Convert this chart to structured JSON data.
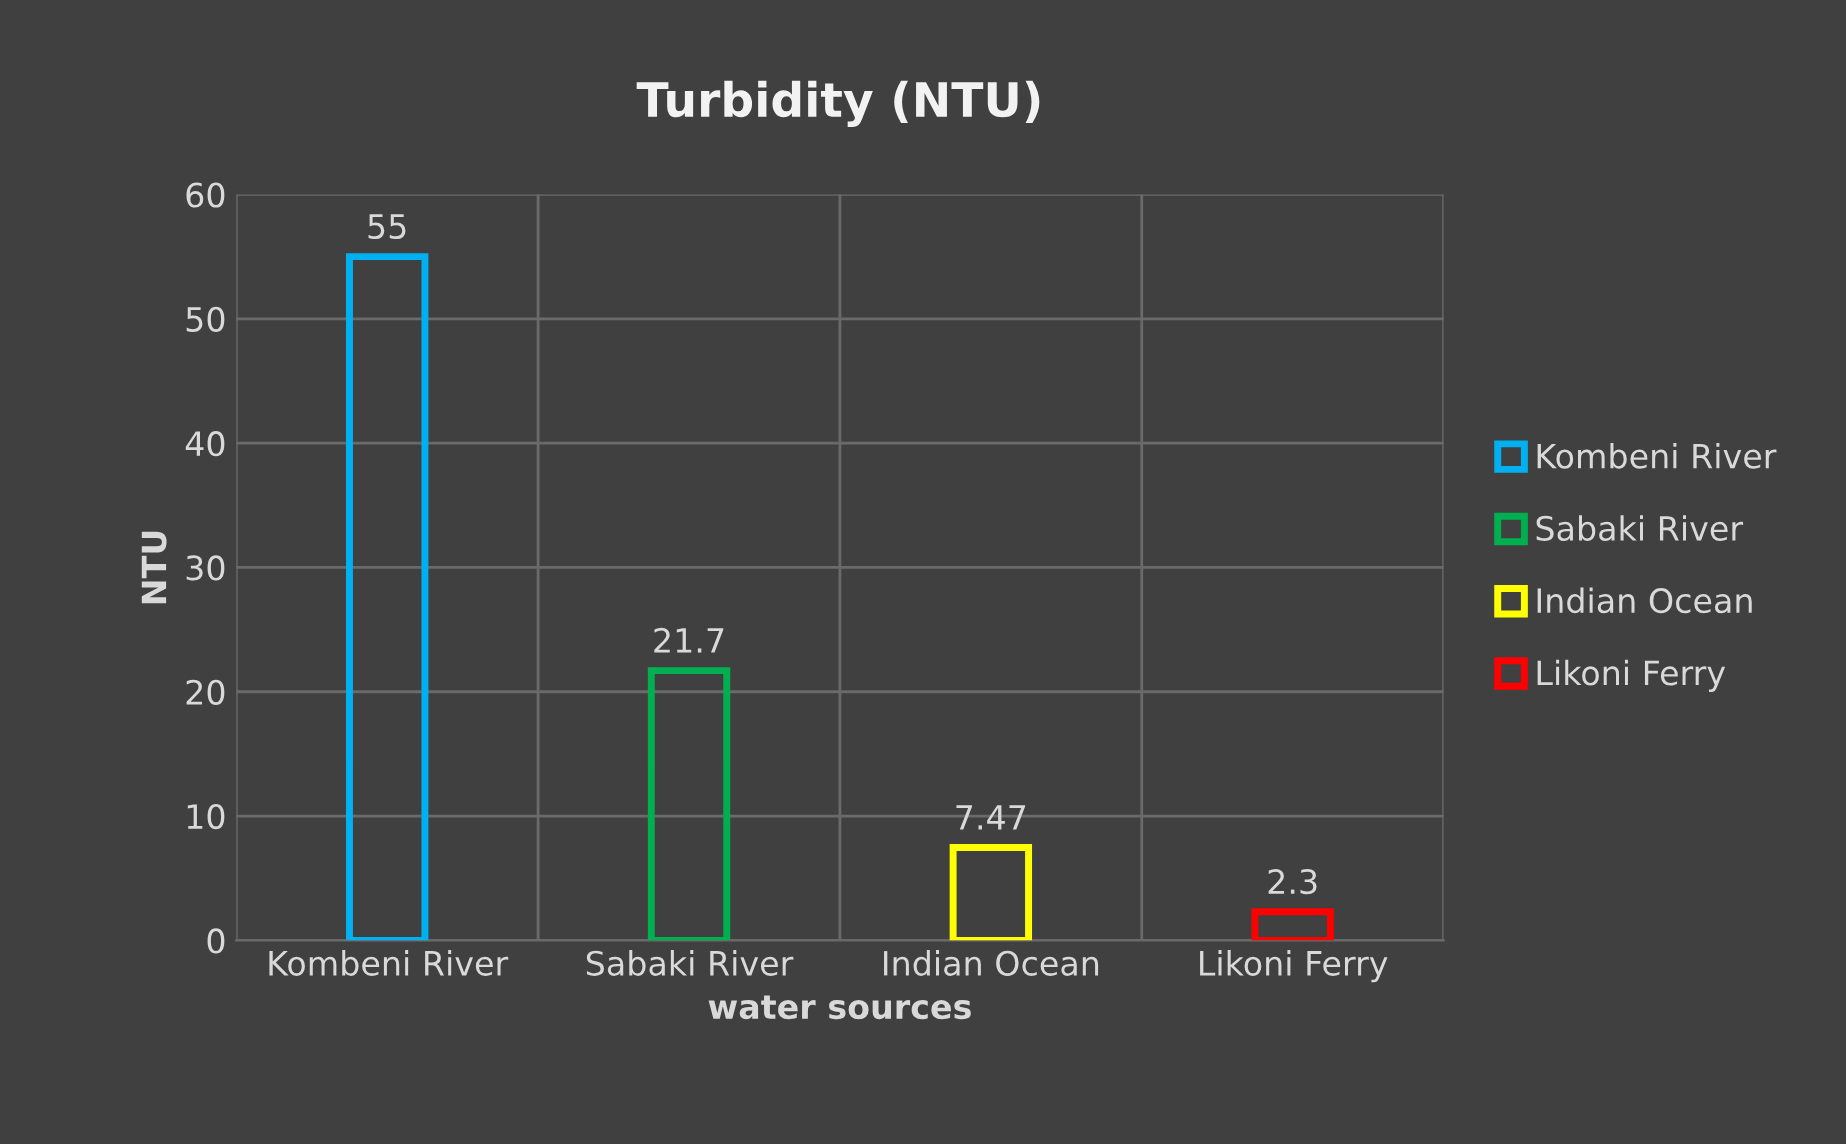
{
  "chart_data": {
    "type": "bar",
    "title": "Turbidity (NTU)",
    "xlabel": "water sources",
    "ylabel": "NTU",
    "categories": [
      "Kombeni River",
      "Sabaki River",
      "Indian Ocean",
      "Likoni Ferry"
    ],
    "series": [
      {
        "name": "Kombeni River",
        "color": "#00b0f0",
        "values": [
          55,
          null,
          null,
          null
        ]
      },
      {
        "name": "Sabaki River",
        "color": "#00b050",
        "values": [
          null,
          21.7,
          null,
          null
        ]
      },
      {
        "name": "Indian Ocean",
        "color": "#ffff00",
        "values": [
          null,
          null,
          7.47,
          null
        ]
      },
      {
        "name": "Likoni Ferry",
        "color": "#ff0000",
        "values": [
          null,
          null,
          null,
          2.3
        ]
      }
    ],
    "ylim": [
      0,
      60
    ],
    "yticks": [
      0,
      10,
      20,
      30,
      40,
      50,
      60
    ],
    "grid": true,
    "legend": "right",
    "data_labels": true
  }
}
